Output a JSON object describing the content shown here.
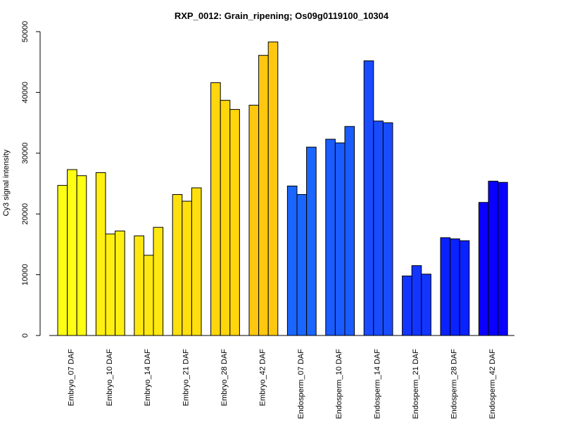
{
  "chart_data": {
    "type": "bar",
    "title": "RXP_0012: Grain_ripening; Os09g0119100_10304",
    "xlabel": "",
    "ylabel": "Cy3 signal intensity",
    "ylim": [
      0,
      50000
    ],
    "yticks": [
      0,
      10000,
      20000,
      30000,
      40000,
      50000
    ],
    "yticklabels": [
      "0",
      "10000",
      "20000",
      "30000",
      "40000",
      "50000"
    ],
    "grid": false,
    "legend": "none",
    "bars_per_group": 3,
    "groups": [
      {
        "label": "Embryo_07 DAF",
        "color": "#FFFF14",
        "values": [
          24700,
          27300,
          26300
        ]
      },
      {
        "label": "Embryo_10 DAF",
        "color": "#FFF012",
        "values": [
          26800,
          16700,
          17200
        ]
      },
      {
        "label": "Embryo_14 DAF",
        "color": "#FFE810",
        "values": [
          16400,
          13200,
          17800
        ]
      },
      {
        "label": "Embryo_21 DAF",
        "color": "#FFE00E",
        "values": [
          23200,
          22100,
          24300
        ]
      },
      {
        "label": "Embryo_28 DAF",
        "color": "#FFD60C",
        "values": [
          41600,
          38700,
          37200
        ]
      },
      {
        "label": "Embryo_42 DAF",
        "color": "#FFC80F",
        "values": [
          37900,
          46100,
          48300
        ]
      },
      {
        "label": "Endosperm_07 DAF",
        "color": "#1A66FF",
        "values": [
          24600,
          23200,
          31000
        ]
      },
      {
        "label": "Endosperm_10 DAF",
        "color": "#1A5CFF",
        "values": [
          32300,
          31700,
          34400
        ]
      },
      {
        "label": "Endosperm_14 DAF",
        "color": "#1A4CFF",
        "values": [
          45200,
          35300,
          35000
        ]
      },
      {
        "label": "Endosperm_21 DAF",
        "color": "#1236FF",
        "values": [
          9800,
          11500,
          10100
        ]
      },
      {
        "label": "Endosperm_28 DAF",
        "color": "#0A22FF",
        "values": [
          16100,
          15900,
          15600
        ]
      },
      {
        "label": "Endosperm_42 DAF",
        "color": "#0A00FF",
        "values": [
          21900,
          25400,
          25200
        ]
      }
    ]
  }
}
